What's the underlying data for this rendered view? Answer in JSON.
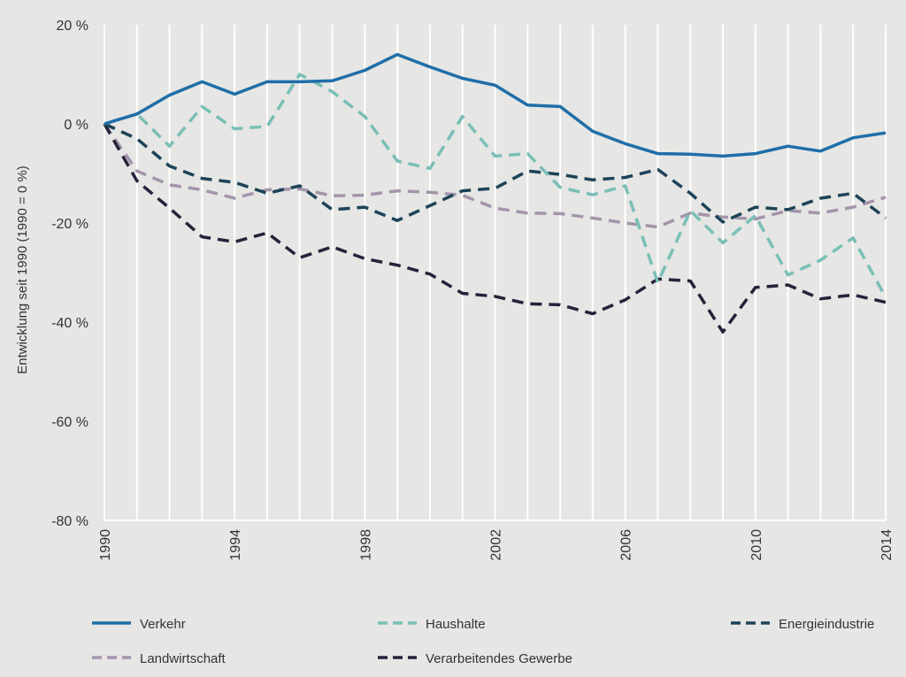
{
  "chart_data": {
    "type": "line",
    "title": "",
    "xlabel": "",
    "ylabel": "Entwicklung seit 1990 (1990 = 0 %)",
    "xlim": [
      1990,
      2014
    ],
    "ylim": [
      -80,
      20
    ],
    "yticks": [
      20,
      0,
      -20,
      -40,
      -60,
      -80
    ],
    "ytick_labels": [
      "20 %",
      "0 %",
      "-20 %",
      "-40 %",
      "-60 %",
      "-80 %"
    ],
    "xticks": [
      1990,
      1994,
      1998,
      2002,
      2006,
      2010,
      2014
    ],
    "xtick_labels": [
      "1990",
      "1994",
      "1998",
      "2002",
      "2006",
      "2010",
      "2014"
    ],
    "x": [
      1990,
      1991,
      1992,
      1993,
      1994,
      1995,
      1996,
      1997,
      1998,
      1999,
      2000,
      2001,
      2002,
      2003,
      2004,
      2005,
      2006,
      2007,
      2008,
      2009,
      2010,
      2011,
      2012,
      2013,
      2014
    ],
    "series": [
      {
        "name": "Verkehr",
        "color": "#1f6ea8",
        "dashed": false,
        "values": [
          0,
          2,
          5.8,
          8.5,
          6,
          8.5,
          8.5,
          8.7,
          10.8,
          14,
          11.5,
          9.2,
          7.8,
          3.8,
          3.5,
          -1.5,
          -4,
          -6,
          -6.1,
          -6.5,
          -6,
          -4.5,
          -5.5,
          -2.8,
          -1.8
        ]
      },
      {
        "name": "Haushalte",
        "color": "#79bfb6",
        "dashed": true,
        "values": [
          0,
          2,
          -4.5,
          3.5,
          -1,
          -0.5,
          10,
          6.5,
          1.5,
          -7.5,
          -9,
          1.5,
          -6.5,
          -6,
          -12.8,
          -14.3,
          -12.5,
          -32,
          -17.5,
          -24,
          -18.5,
          -30.5,
          -27.5,
          -23,
          -35
        ]
      },
      {
        "name": "Energieindustrie",
        "color": "#1d4358",
        "dashed": true,
        "values": [
          0,
          -3,
          -8.5,
          -11,
          -11.8,
          -14,
          -12.5,
          -17.3,
          -16.8,
          -19.5,
          -16.5,
          -13.5,
          -13,
          -9.5,
          -10.2,
          -11.3,
          -10.8,
          -9.2,
          -14,
          -19.8,
          -16.8,
          -17.3,
          -15,
          -14,
          -19
        ]
      },
      {
        "name": "Landwirtschaft",
        "color": "#a394ab",
        "dashed": true,
        "values": [
          0,
          -9.5,
          -12.3,
          -13.3,
          -15,
          -13.3,
          -13.1,
          -14.5,
          -14.4,
          -13.5,
          -13.8,
          -14.4,
          -17,
          -18,
          -18.1,
          -19,
          -20,
          -20.8,
          -18,
          -18.8,
          -19.2,
          -17.5,
          -18,
          -16.8,
          -14.8
        ]
      },
      {
        "name": "Verarbeitendes Gewerbe",
        "color": "#27213a",
        "dashed": true,
        "values": [
          0,
          -11.5,
          -17,
          -22.8,
          -23.8,
          -22,
          -27,
          -24.8,
          -27.2,
          -28.5,
          -30.3,
          -34.2,
          -34.8,
          -36.3,
          -36.5,
          -38.3,
          -35.5,
          -31.3,
          -31.7,
          -42,
          -33,
          -32.5,
          -35.3,
          -34.5,
          -36
        ]
      }
    ],
    "legend": {
      "placement": "bottom",
      "rows": [
        [
          "Verkehr",
          "Haushalte",
          "Energieindustrie"
        ],
        [
          "Landwirtschaft",
          "Verarbeitendes Gewerbe"
        ]
      ]
    },
    "grid": {
      "vertical": true,
      "horizontal": false
    }
  }
}
